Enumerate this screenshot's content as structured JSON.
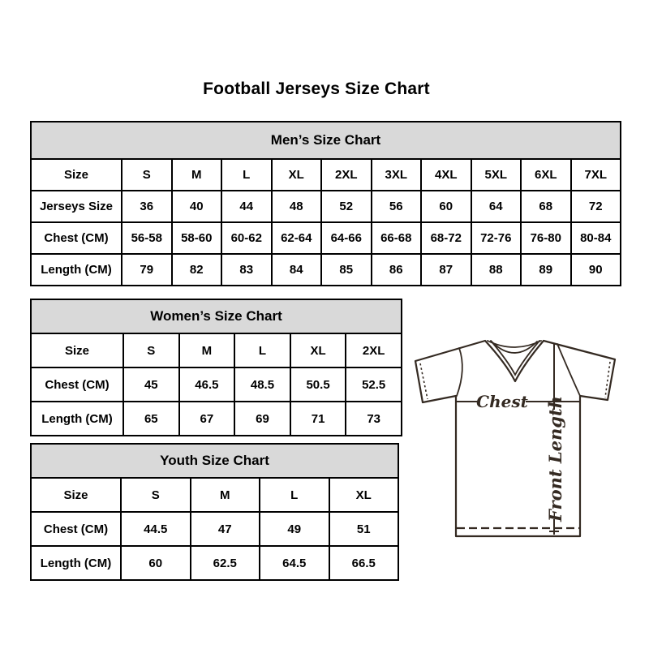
{
  "page": {
    "title": "Football Jerseys Size Chart"
  },
  "tables": {
    "mens": {
      "title": "Men’s Size Chart",
      "rows": [
        [
          "Size",
          "S",
          "M",
          "L",
          "XL",
          "2XL",
          "3XL",
          "4XL",
          "5XL",
          "6XL",
          "7XL"
        ],
        [
          "Jerseys Size",
          "36",
          "40",
          "44",
          "48",
          "52",
          "56",
          "60",
          "64",
          "68",
          "72"
        ],
        [
          "Chest (CM)",
          "56-58",
          "58-60",
          "60-62",
          "62-64",
          "64-66",
          "66-68",
          "68-72",
          "72-76",
          "76-80",
          "80-84"
        ],
        [
          "Length (CM)",
          "79",
          "82",
          "83",
          "84",
          "85",
          "86",
          "87",
          "88",
          "89",
          "90"
        ]
      ]
    },
    "womens": {
      "title": "Women’s Size Chart",
      "rows": [
        [
          "Size",
          "S",
          "M",
          "L",
          "XL",
          "2XL"
        ],
        [
          "Chest (CM)",
          "45",
          "46.5",
          "48.5",
          "50.5",
          "52.5"
        ],
        [
          "Length (CM)",
          "65",
          "67",
          "69",
          "71",
          "73"
        ]
      ]
    },
    "youth": {
      "title": "Youth Size Chart",
      "rows": [
        [
          "Size",
          "S",
          "M",
          "L",
          "XL"
        ],
        [
          "Chest (CM)",
          "44.5",
          "47",
          "49",
          "51"
        ],
        [
          "Length (CM)",
          "60",
          "62.5",
          "64.5",
          "66.5"
        ]
      ]
    }
  },
  "diagram": {
    "chest_label": "Chest",
    "front_length_label": "Front Length"
  },
  "colors": {
    "table_header_bg": "#d9d9d9",
    "table_border": "#000000",
    "diagram_stroke": "#342a22"
  }
}
